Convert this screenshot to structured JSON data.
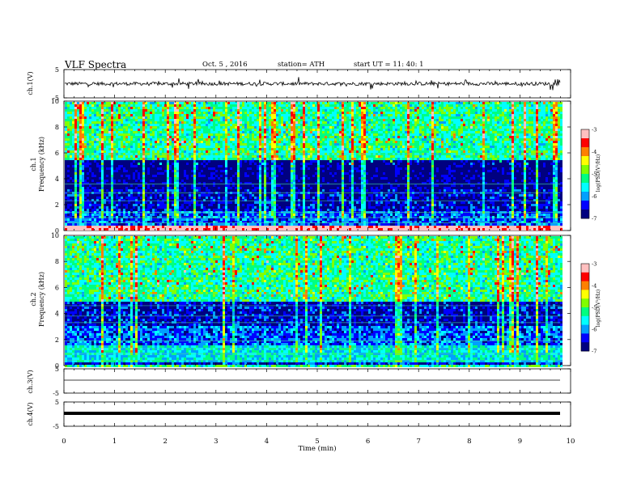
{
  "header": {
    "title": "VLF  Spectra",
    "date": "Oct. 5  , 2016",
    "station": "station= ATH",
    "start": "start  UT  =    11: 40: 1"
  },
  "x_axis": {
    "label": "Time  (min)",
    "ticks": [
      "0",
      "1",
      "2",
      "3",
      "4",
      "5",
      "6",
      "7",
      "8",
      "9",
      "10"
    ]
  },
  "panels": [
    {
      "label": "ch.1(V)",
      "yticks": [
        "5",
        "-5"
      ]
    },
    {
      "label": "ch.1",
      "sublabel": "Frequency  (kHz)",
      "yticks": [
        "10",
        "8",
        "6",
        "4",
        "2",
        "0"
      ]
    },
    {
      "label": "ch.2",
      "sublabel": "Frequency  (kHz)",
      "yticks": [
        "10",
        "8",
        "6",
        "4",
        "2",
        "0"
      ]
    },
    {
      "label": "ch.3(V)",
      "yticks": [
        "5",
        "-5"
      ]
    },
    {
      "label": "ch.4(V)",
      "yticks": [
        "5",
        "-5"
      ]
    }
  ],
  "colorbar": {
    "label": "log(PSD(V²/Hz)",
    "ticks": [
      "-3",
      "-4",
      "-5",
      "-6",
      "-7"
    ],
    "colors": [
      "#000080",
      "#0000ff",
      "#00a0ff",
      "#00ffff",
      "#00ff80",
      "#80ff00",
      "#ffff00",
      "#ff8000",
      "#ff0000",
      "#ffc0c0",
      "#ffffff"
    ]
  },
  "chart_data": [
    {
      "type": "line",
      "name": "ch.1(V)",
      "ylim": [
        -5,
        5
      ],
      "xlim": [
        0,
        10
      ],
      "values_summary": "noisy waveform around 0 V, spikes to about ±1.5 V",
      "series_end_min": 9.8
    },
    {
      "type": "heatmap",
      "name": "ch.1",
      "ylim": [
        0,
        10
      ],
      "xlim": [
        0,
        10
      ],
      "zlim": [
        -7,
        -3
      ],
      "series_end_min": 9.8,
      "band_levels": [
        {
          "fmin": 0,
          "fmax": 0.3,
          "level": -3.2
        },
        {
          "fmin": 0.3,
          "fmax": 1.5,
          "level": -6.2
        },
        {
          "fmin": 1.5,
          "fmax": 3.2,
          "level": -6.6
        },
        {
          "fmin": 3.2,
          "fmax": 5.5,
          "level": -6.9
        },
        {
          "fmin": 5.5,
          "fmax": 10,
          "level": -5.3
        }
      ]
    },
    {
      "type": "heatmap",
      "name": "ch.2",
      "ylim": [
        0,
        10
      ],
      "xlim": [
        0,
        10
      ],
      "zlim": [
        -7,
        -3
      ],
      "series_end_min": 9.8,
      "band_levels": [
        {
          "fmin": 0,
          "fmax": 0.3,
          "level": -6.5
        },
        {
          "fmin": 0.3,
          "fmax": 1.6,
          "level": -5.6
        },
        {
          "fmin": 1.6,
          "fmax": 3.0,
          "level": -6.2
        },
        {
          "fmin": 3.0,
          "fmax": 5.0,
          "level": -6.6
        },
        {
          "fmin": 5.0,
          "fmax": 10,
          "level": -5.3
        }
      ]
    },
    {
      "type": "line",
      "name": "ch.3(V)",
      "ylim": [
        -5,
        5
      ],
      "xlim": [
        0,
        10
      ],
      "values_summary": "flat near 0 V",
      "series_end_min": 9.8
    },
    {
      "type": "line",
      "name": "ch.4(V)",
      "ylim": [
        -5,
        5
      ],
      "xlim": [
        0,
        10
      ],
      "values_summary": "flat near 0 V, thick trace",
      "series_end_min": 9.8
    }
  ]
}
